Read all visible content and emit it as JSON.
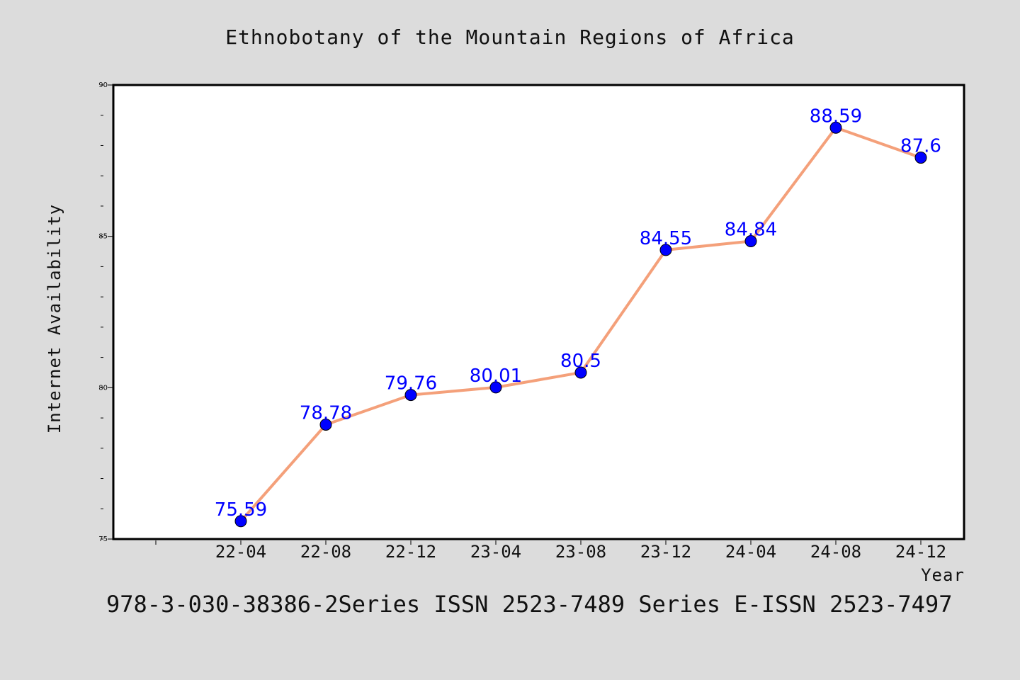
{
  "chart_data": {
    "type": "line",
    "title": "Ethnobotany of the Mountain Regions of Africa",
    "xlabel": "Year",
    "ylabel": "Internet Availability",
    "categories": [
      "22-04",
      "22-08",
      "22-12",
      "23-04",
      "23-08",
      "23-12",
      "24-04",
      "24-08",
      "24-12"
    ],
    "series": [
      {
        "values": [
          75.59,
          78.78,
          79.76,
          80.01,
          80.5,
          84.55,
          84.84,
          88.59,
          87.6
        ],
        "labels": [
          "75.59",
          "78.78",
          "79.76",
          "80.01",
          "80.5",
          "84.55",
          "84.84",
          "88.59",
          "87.6"
        ],
        "line_color": "#f4a07a",
        "marker_color": "#0000ff"
      }
    ],
    "ylim": [
      75,
      90
    ],
    "y_ticks": [
      "75",
      "80",
      "85",
      "90"
    ],
    "grid": false,
    "legend": "none"
  },
  "footer": {
    "text": "978-3-030-38386-2Series ISSN 2523-7489 Series E-ISSN 2523-7497"
  }
}
